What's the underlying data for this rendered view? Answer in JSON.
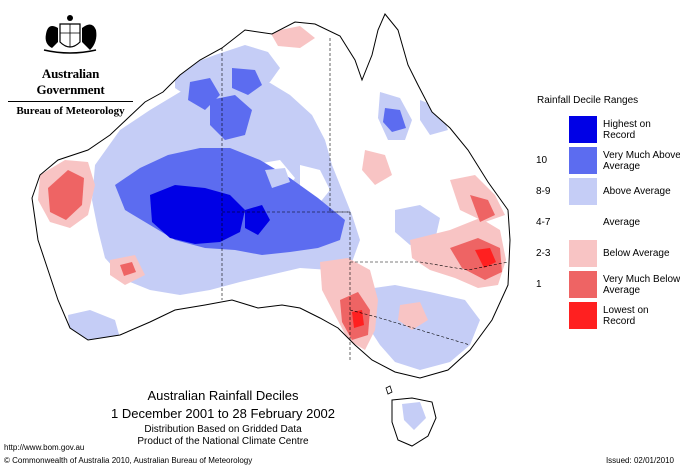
{
  "header": {
    "government": "Australian Government",
    "bureau": "Bureau of Meteorology",
    "logo_icon": "coat-of-arms-icon"
  },
  "legend": {
    "title": "Rainfall Decile Ranges",
    "items": [
      {
        "code": "",
        "label": "Highest on Record",
        "color": "#0000e6"
      },
      {
        "code": "10",
        "label": "Very Much Above Average",
        "color": "#5c6cf0"
      },
      {
        "code": "8-9",
        "label": "Above Average",
        "color": "#c5cdf6"
      },
      {
        "code": "4-7",
        "label": "Average",
        "color": "#ffffff"
      },
      {
        "code": "2-3",
        "label": "Below Average",
        "color": "#f8c4c4"
      },
      {
        "code": "1",
        "label": "Very Much Below Average",
        "color": "#ee6464"
      },
      {
        "code": "",
        "label": "Lowest on Record",
        "color": "#ff2020"
      }
    ]
  },
  "map": {
    "title": "Australian Rainfall Deciles",
    "period": "1 December 2001 to 28 February 2002",
    "note1": "Distribution Based on Gridded Data",
    "note2": "Product of the National Climate Centre"
  },
  "footer": {
    "url": "http://www.bom.gov.au",
    "copyright": "© Commonwealth of Australia 2010, Australian Bureau of Meteorology",
    "issued": "Issued: 02/01/2010"
  }
}
